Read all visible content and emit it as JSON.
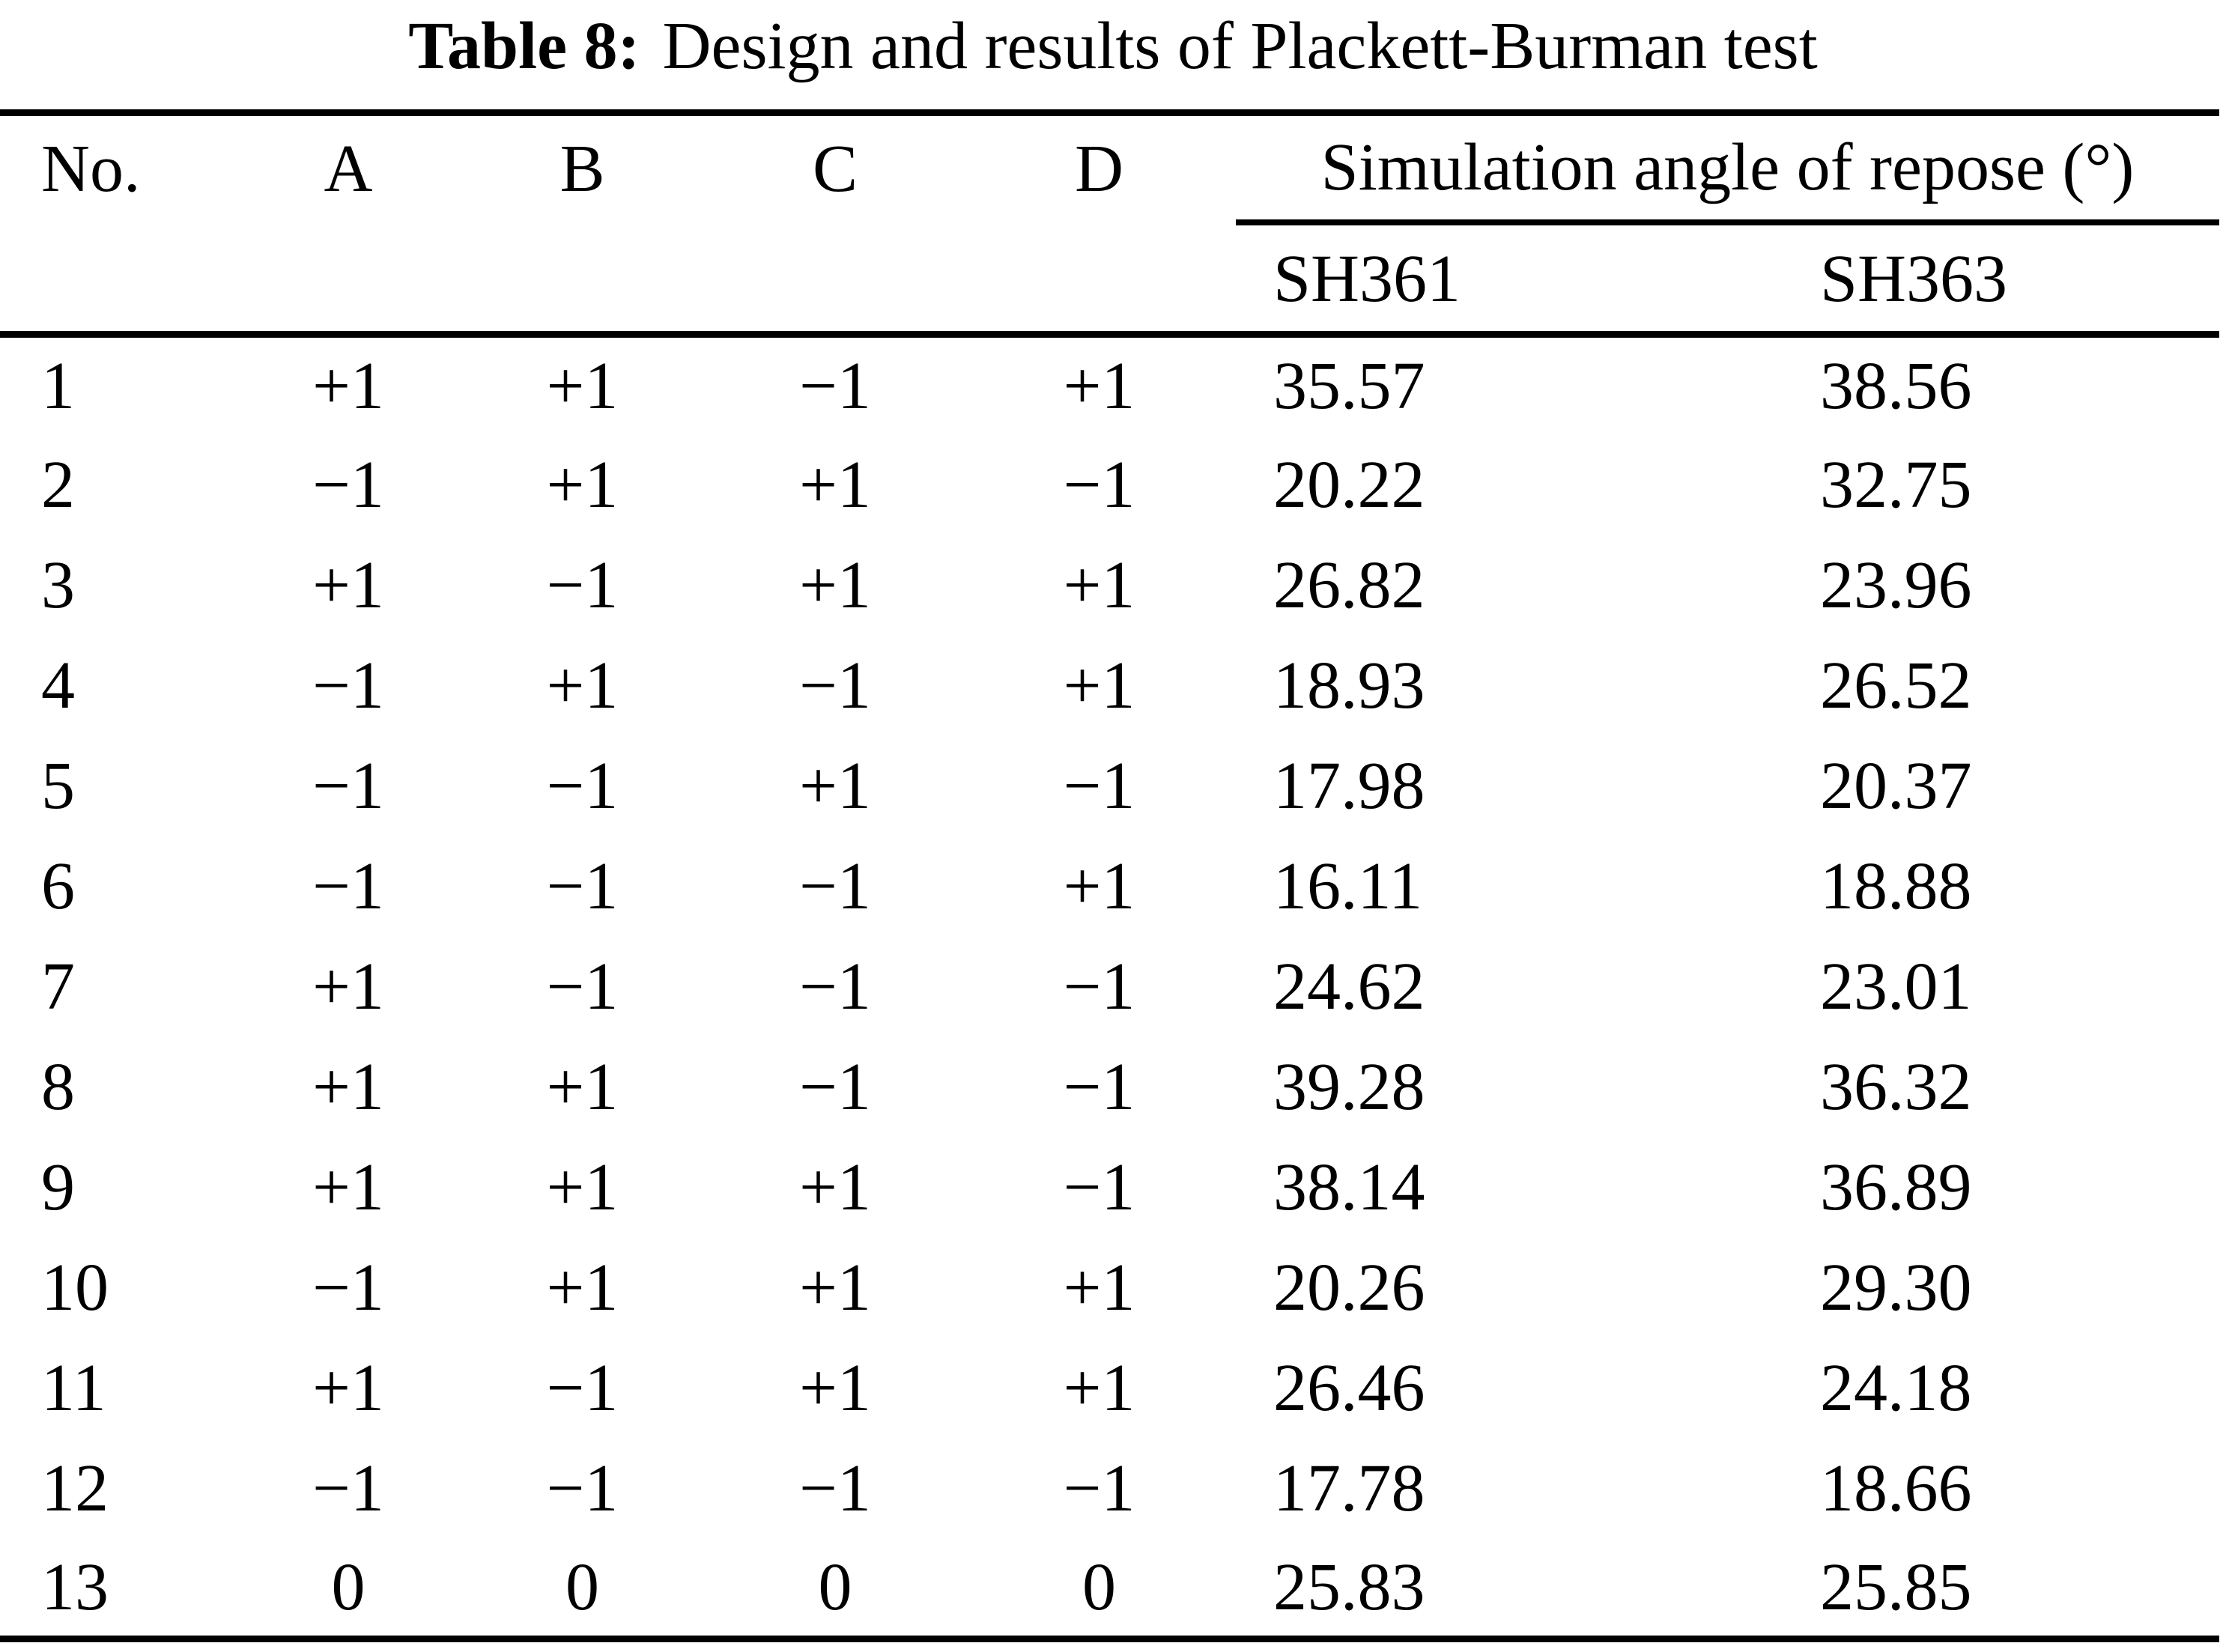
{
  "title": {
    "label": "Table 8:",
    "text": "Design and results of Plackett-Burman test"
  },
  "table": {
    "columns": [
      "No.",
      "A",
      "B",
      "C",
      "D"
    ],
    "span_header": "Simulation angle of repose (°)",
    "sub_columns": [
      "SH361",
      "SH363"
    ],
    "rows": [
      {
        "no": "1",
        "a": "+1",
        "b": "+1",
        "c": "−1",
        "d": "+1",
        "sh361": "35.57",
        "sh363": "38.56"
      },
      {
        "no": "2",
        "a": "−1",
        "b": "+1",
        "c": "+1",
        "d": "−1",
        "sh361": "20.22",
        "sh363": "32.75"
      },
      {
        "no": "3",
        "a": "+1",
        "b": "−1",
        "c": "+1",
        "d": "+1",
        "sh361": "26.82",
        "sh363": "23.96"
      },
      {
        "no": "4",
        "a": "−1",
        "b": "+1",
        "c": "−1",
        "d": "+1",
        "sh361": "18.93",
        "sh363": "26.52"
      },
      {
        "no": "5",
        "a": "−1",
        "b": "−1",
        "c": "+1",
        "d": "−1",
        "sh361": "17.98",
        "sh363": "20.37"
      },
      {
        "no": "6",
        "a": "−1",
        "b": "−1",
        "c": "−1",
        "d": "+1",
        "sh361": "16.11",
        "sh363": "18.88"
      },
      {
        "no": "7",
        "a": "+1",
        "b": "−1",
        "c": "−1",
        "d": "−1",
        "sh361": "24.62",
        "sh363": "23.01"
      },
      {
        "no": "8",
        "a": "+1",
        "b": "+1",
        "c": "−1",
        "d": "−1",
        "sh361": "39.28",
        "sh363": "36.32"
      },
      {
        "no": "9",
        "a": "+1",
        "b": "+1",
        "c": "+1",
        "d": "−1",
        "sh361": "38.14",
        "sh363": "36.89"
      },
      {
        "no": "10",
        "a": "−1",
        "b": "+1",
        "c": "+1",
        "d": "+1",
        "sh361": "20.26",
        "sh363": "29.30"
      },
      {
        "no": "11",
        "a": "+1",
        "b": "−1",
        "c": "+1",
        "d": "+1",
        "sh361": "26.46",
        "sh363": "24.18"
      },
      {
        "no": "12",
        "a": "−1",
        "b": "−1",
        "c": "−1",
        "d": "−1",
        "sh361": "17.78",
        "sh363": "18.66"
      },
      {
        "no": "13",
        "a": "0",
        "b": "0",
        "c": "0",
        "d": "0",
        "sh361": "25.83",
        "sh363": "25.85"
      }
    ]
  }
}
